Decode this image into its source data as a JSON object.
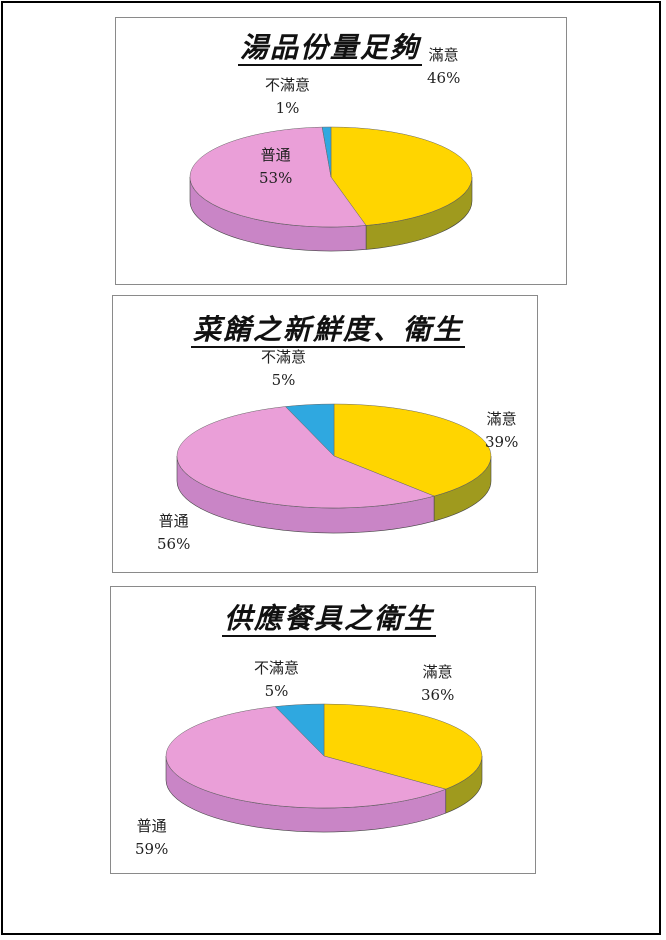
{
  "colors": {
    "satisfied": "#ffd500",
    "satisfied_side": "#9f9a1e",
    "neutral": "#ea9fd8",
    "neutral_side": "#c985c6",
    "unsatisfied": "#2fa8e0",
    "unsatisfied_side": "#1b7fb0"
  },
  "chart_data": [
    {
      "type": "pie",
      "title": "湯品份量足夠",
      "slices": [
        {
          "label": "滿意",
          "value": 46,
          "pct": "46%"
        },
        {
          "label": "普通",
          "value": 53,
          "pct": "53%"
        },
        {
          "label": "不滿意",
          "value": 1,
          "pct": "1%"
        }
      ]
    },
    {
      "type": "pie",
      "title": "菜餚之新鮮度、衛生",
      "slices": [
        {
          "label": "滿意",
          "value": 39,
          "pct": "39%"
        },
        {
          "label": "普通",
          "value": 56,
          "pct": "56%"
        },
        {
          "label": "不滿意",
          "value": 5,
          "pct": "5%"
        }
      ]
    },
    {
      "type": "pie",
      "title": "供應餐具之衛生",
      "slices": [
        {
          "label": "滿意",
          "value": 36,
          "pct": "36%"
        },
        {
          "label": "普通",
          "value": 59,
          "pct": "59%"
        },
        {
          "label": "不滿意",
          "value": 5,
          "pct": "5%"
        }
      ]
    }
  ]
}
